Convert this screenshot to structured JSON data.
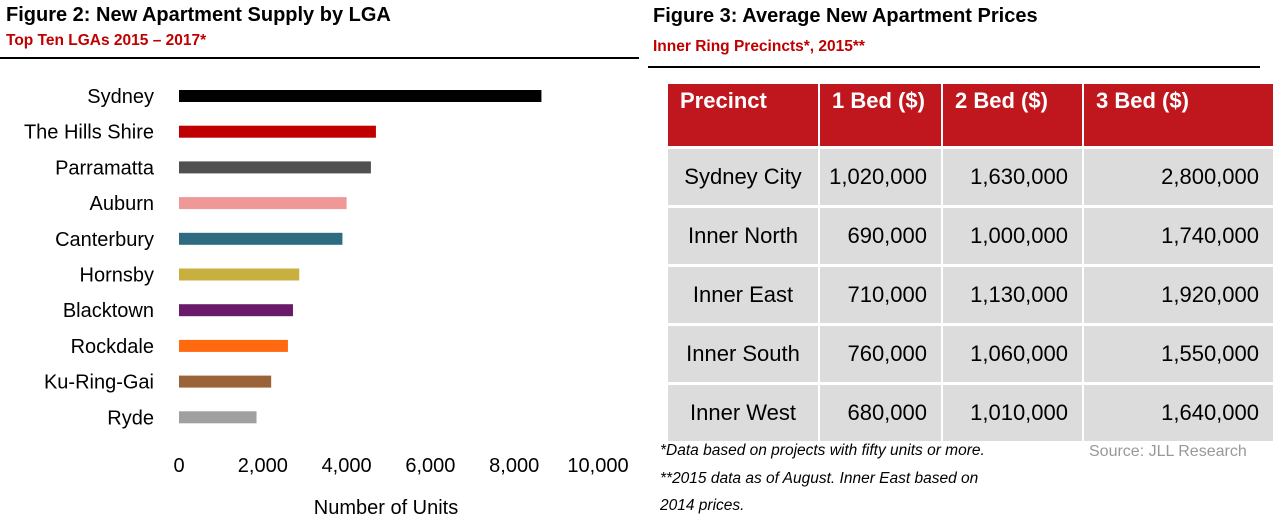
{
  "figure2": {
    "title": "Figure 2: New Apartment Supply by LGA",
    "subtitle": "Top Ten LGAs 2015 – 2017*"
  },
  "chart_data": {
    "type": "bar",
    "orientation": "horizontal",
    "title": "Figure 2: New Apartment Supply by LGA",
    "subtitle": "Top Ten LGAs 2015 – 2017*",
    "xlabel": "Number of Units",
    "ylabel": "",
    "xlim": [
      0,
      10000
    ],
    "x_ticks": [
      0,
      2000,
      4000,
      6000,
      8000,
      10000
    ],
    "x_tick_labels": [
      "0",
      "2,000",
      "4,000",
      "6,000",
      "8,000",
      "10,000"
    ],
    "grid": false,
    "categories": [
      "Sydney",
      "The Hills Shire",
      "Parramatta",
      "Auburn",
      "Canterbury",
      "Hornsby",
      "Blacktown",
      "Rockdale",
      "Ku-Ring-Gai",
      "Ryde"
    ],
    "values": [
      8650,
      4700,
      4580,
      4000,
      3900,
      2870,
      2720,
      2600,
      2200,
      1850
    ],
    "colors": [
      "#000000",
      "#c00000",
      "#505050",
      "#f09898",
      "#2e6b80",
      "#c8b040",
      "#6a1a6a",
      "#ff6a10",
      "#9a6438",
      "#a0a0a0"
    ]
  },
  "figure3": {
    "title": "Figure 3: Average New Apartment Prices",
    "subtitle": "Inner Ring Precincts*, 2015**",
    "header": [
      "Precinct",
      "1 Bed ($)",
      "2 Bed ($)",
      "3 Bed ($)"
    ],
    "rows": [
      [
        "Sydney City",
        "1,020,000",
        "1,630,000",
        "2,800,000"
      ],
      [
        "Inner North",
        "690,000",
        "1,000,000",
        "1,740,000"
      ],
      [
        "Inner East",
        "710,000",
        "1,130,000",
        "1,920,000"
      ],
      [
        "Inner South",
        "760,000",
        "1,060,000",
        "1,550,000"
      ],
      [
        "Inner West",
        "680,000",
        "1,010,000",
        "1,640,000"
      ]
    ],
    "notes": [
      "*Data based on projects with fifty units or more.",
      "**2015 data as of August. Inner East based on",
      "2014 prices."
    ],
    "source": "Source: JLL Research",
    "header_color": "#c0161d",
    "cell_color": "#dcdcdc"
  }
}
